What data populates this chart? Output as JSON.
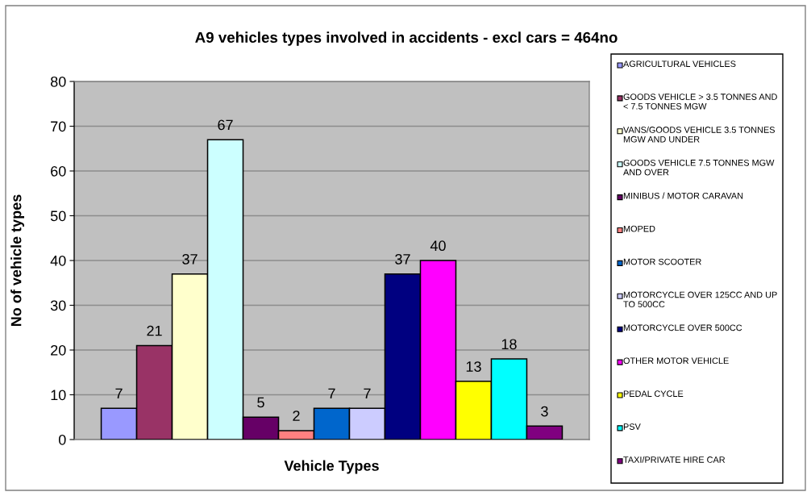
{
  "chart_data": {
    "type": "bar",
    "title": "A9 vehicles types involved in accidents - excl cars = 464no",
    "xlabel": "Vehicle Types",
    "ylabel": "No of vehicle types",
    "categories": [
      null
    ],
    "series": [
      {
        "name": "AGRICULTURAL VEHICLES",
        "color": "#9999ff",
        "values": [
          7
        ]
      },
      {
        "name": "GOODS VEHICLE > 3.5 TONNES AND < 7.5 TONNES MGW",
        "color": "#993366",
        "values": [
          21
        ]
      },
      {
        "name": "VANS/GOODS VEHICLE 3.5 TONNES MGW AND UNDER",
        "color": "#ffffcc",
        "values": [
          37
        ]
      },
      {
        "name": "GOODS VEHICLE 7.5 TONNES MGW AND OVER",
        "color": "#ccffff",
        "values": [
          67
        ]
      },
      {
        "name": "MINIBUS / MOTOR CARAVAN",
        "color": "#660066",
        "values": [
          5
        ]
      },
      {
        "name": "MOPED",
        "color": "#ff8080",
        "values": [
          2
        ]
      },
      {
        "name": "MOTOR SCOOTER",
        "color": "#0066cc",
        "values": [
          7
        ]
      },
      {
        "name": "MOTORCYCLE OVER 125CC AND UP TO 500CC",
        "color": "#ccccff",
        "values": [
          7
        ]
      },
      {
        "name": "MOTORCYCLE OVER 500CC",
        "color": "#000080",
        "values": [
          37
        ]
      },
      {
        "name": "OTHER MOTOR VEHICLE",
        "color": "#ff00ff",
        "values": [
          40
        ]
      },
      {
        "name": "PEDAL CYCLE",
        "color": "#ffff00",
        "values": [
          13
        ]
      },
      {
        "name": "PSV",
        "color": "#00ffff",
        "values": [
          18
        ]
      },
      {
        "name": "TAXI/PRIVATE HIRE CAR",
        "color": "#800080",
        "values": [
          3
        ]
      }
    ],
    "ylim": [
      0,
      80
    ],
    "yticks": [
      0,
      10,
      20,
      30,
      40,
      50,
      60,
      70,
      80
    ],
    "grid": "y",
    "legend": "right",
    "data_labels": true
  }
}
